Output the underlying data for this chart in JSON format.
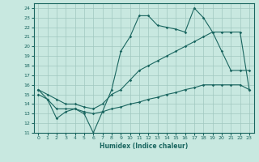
{
  "xlabel": "Humidex (Indice chaleur)",
  "bg_color": "#c8e8e0",
  "grid_color": "#a0c8c0",
  "line_color": "#1a6660",
  "xlim": [
    -0.5,
    23.5
  ],
  "ylim": [
    11,
    24.5
  ],
  "xticks": [
    0,
    1,
    2,
    3,
    4,
    5,
    6,
    7,
    8,
    9,
    10,
    11,
    12,
    13,
    14,
    15,
    16,
    17,
    18,
    19,
    20,
    21,
    22,
    23
  ],
  "yticks": [
    11,
    12,
    13,
    14,
    15,
    16,
    17,
    18,
    19,
    20,
    21,
    22,
    23,
    24
  ],
  "line1_x": [
    0,
    1,
    2,
    3,
    4,
    5,
    6,
    7,
    8,
    9,
    10,
    11,
    12,
    13,
    14,
    15,
    16,
    17,
    18,
    19,
    20,
    21,
    22,
    23
  ],
  "line1_y": [
    15.5,
    14.5,
    12.5,
    13.2,
    13.5,
    13.0,
    11.0,
    13.2,
    15.5,
    19.5,
    21.0,
    23.2,
    23.2,
    22.2,
    22.0,
    21.8,
    21.5,
    24.0,
    23.0,
    21.5,
    19.5,
    17.5,
    17.5,
    17.5
  ],
  "line2_x": [
    0,
    1,
    2,
    3,
    4,
    5,
    6,
    7,
    8,
    9,
    10,
    11,
    12,
    13,
    14,
    15,
    16,
    17,
    18,
    19,
    20,
    21,
    22,
    23
  ],
  "line2_y": [
    15.5,
    15.0,
    14.5,
    14.0,
    14.0,
    13.7,
    13.5,
    14.0,
    15.0,
    15.5,
    16.5,
    17.5,
    18.0,
    18.5,
    19.0,
    19.5,
    20.0,
    20.5,
    21.0,
    21.5,
    21.5,
    21.5,
    21.5,
    15.5
  ],
  "line3_x": [
    0,
    1,
    2,
    3,
    4,
    5,
    6,
    7,
    8,
    9,
    10,
    11,
    12,
    13,
    14,
    15,
    16,
    17,
    18,
    19,
    20,
    21,
    22,
    23
  ],
  "line3_y": [
    15.0,
    14.5,
    13.5,
    13.5,
    13.5,
    13.2,
    13.0,
    13.2,
    13.5,
    13.7,
    14.0,
    14.2,
    14.5,
    14.7,
    15.0,
    15.2,
    15.5,
    15.7,
    16.0,
    16.0,
    16.0,
    16.0,
    16.0,
    15.5
  ]
}
